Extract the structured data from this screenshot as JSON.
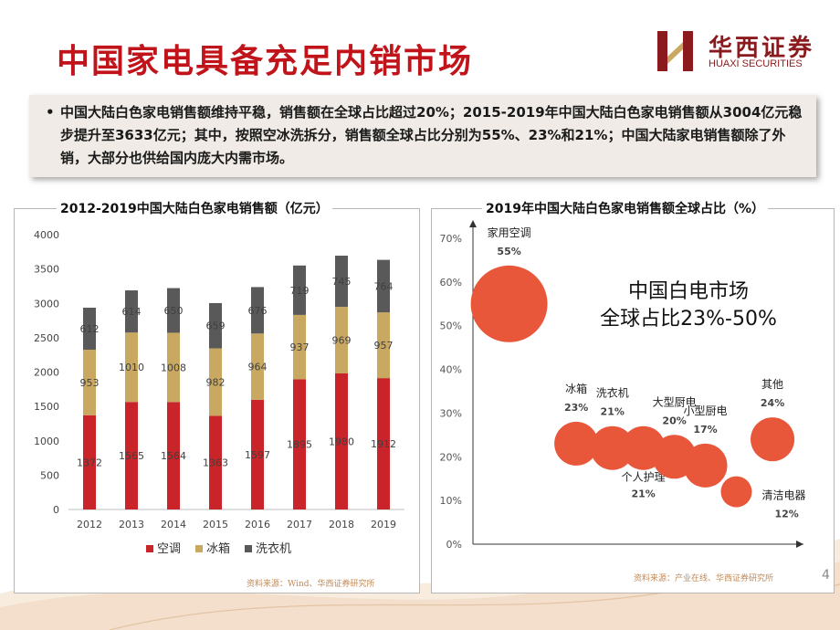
{
  "page": {
    "title": "中国家电具备充足内销市场",
    "logo_cn": "华西证券",
    "logo_en": "HUAXI SECURITIES",
    "bullet": "•",
    "summary": "中国大陆白色家电销售额维持平稳，销售额在全球占比超过20%；2015-2019年中国大陆白色家电销售额从3004亿元稳步提升至3633亿元；其中，按照空冰洗拆分，销售额全球占比分别为55%、23%和21%；中国大陆家电销售额除了外销，大部分也供给国内庞大内需市场。",
    "page_number": "4",
    "source_left": "资料来源：Wind、华西证券研究所",
    "source_right": "资料来源：产业在线、华西证券研究所"
  },
  "chart_data": [
    {
      "type": "bar",
      "stacked": true,
      "title": "2012-2019中国大陆白色家电销售额（亿元）",
      "categories": [
        "2012",
        "2013",
        "2014",
        "2015",
        "2016",
        "2017",
        "2018",
        "2019"
      ],
      "series": [
        {
          "name": "空调",
          "color": "#c8242a",
          "values": [
            1372,
            1565,
            1564,
            1363,
            1597,
            1895,
            1980,
            1912
          ]
        },
        {
          "name": "冰箱",
          "color": "#c9a961",
          "values": [
            953,
            1010,
            1008,
            982,
            964,
            937,
            969,
            957
          ]
        },
        {
          "name": "洗衣机",
          "color": "#595959",
          "values": [
            612,
            614,
            650,
            659,
            676,
            719,
            745,
            764
          ]
        }
      ],
      "ylim": [
        0,
        4000
      ],
      "yticks": [
        "0",
        "500",
        "1000",
        "1500",
        "2000",
        "2500",
        "3000",
        "3500",
        "4000"
      ],
      "legend": "bottom"
    },
    {
      "type": "scatter",
      "subtype": "bubble",
      "title": "2019年中国大陆白色家电销售额全球占比（%）",
      "yticks": [
        "0%",
        "10%",
        "20%",
        "30%",
        "40%",
        "50%",
        "60%",
        "70%"
      ],
      "ylim": [
        0,
        70
      ],
      "color": "#e8573a",
      "annotation": [
        "中国白电市场",
        "全球占比23%-50%"
      ],
      "points": [
        {
          "name": "家用空调",
          "value": 55,
          "label": "55%",
          "x": 1.0,
          "y": 55,
          "label_pos": "above"
        },
        {
          "name": "冰箱",
          "value": 23,
          "label": "23%",
          "x": 2.3,
          "y": 23,
          "label_pos": "above"
        },
        {
          "name": "洗衣机",
          "value": 21,
          "label": "21%",
          "x": 3.0,
          "y": 22,
          "label_pos": "above"
        },
        {
          "name": "个人护理",
          "value": 21,
          "label": "21%",
          "x": 3.6,
          "y": 22,
          "label_pos": "below"
        },
        {
          "name": "大型厨电",
          "value": 20,
          "label": "20%",
          "x": 4.2,
          "y": 20,
          "label_pos": "above"
        },
        {
          "name": "小型厨电",
          "value": 17,
          "label": "17%",
          "x": 4.8,
          "y": 18,
          "label_pos": "above"
        },
        {
          "name": "清洁电器",
          "value": 12,
          "label": "12%",
          "x": 5.4,
          "y": 12,
          "label_pos": "right"
        },
        {
          "name": "其他",
          "value": 24,
          "label": "24%",
          "x": 6.1,
          "y": 24,
          "label_pos": "above"
        }
      ]
    }
  ]
}
